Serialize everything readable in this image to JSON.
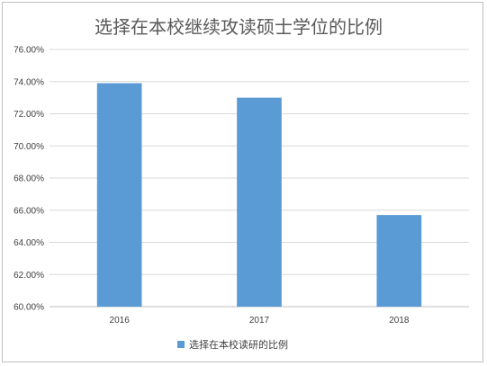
{
  "chart_data": {
    "type": "bar",
    "title": "选择在本校继续攻读硕士学位的比例",
    "categories": [
      "2016",
      "2017",
      "2018"
    ],
    "series": [
      {
        "name": "选择在本校读研的比例",
        "values": [
          73.9,
          73.0,
          65.7
        ]
      }
    ],
    "ylim": [
      60,
      76
    ],
    "ytick_step": 2,
    "ytick_labels": [
      "60.00%",
      "62.00%",
      "64.00%",
      "66.00%",
      "68.00%",
      "70.00%",
      "72.00%",
      "74.00%",
      "76.00%"
    ],
    "grid": true,
    "legend_position": "bottom",
    "colors": {
      "bar": "#5b9bd5",
      "grid": "#d9d9d9",
      "axis": "#bfbfbf"
    }
  }
}
